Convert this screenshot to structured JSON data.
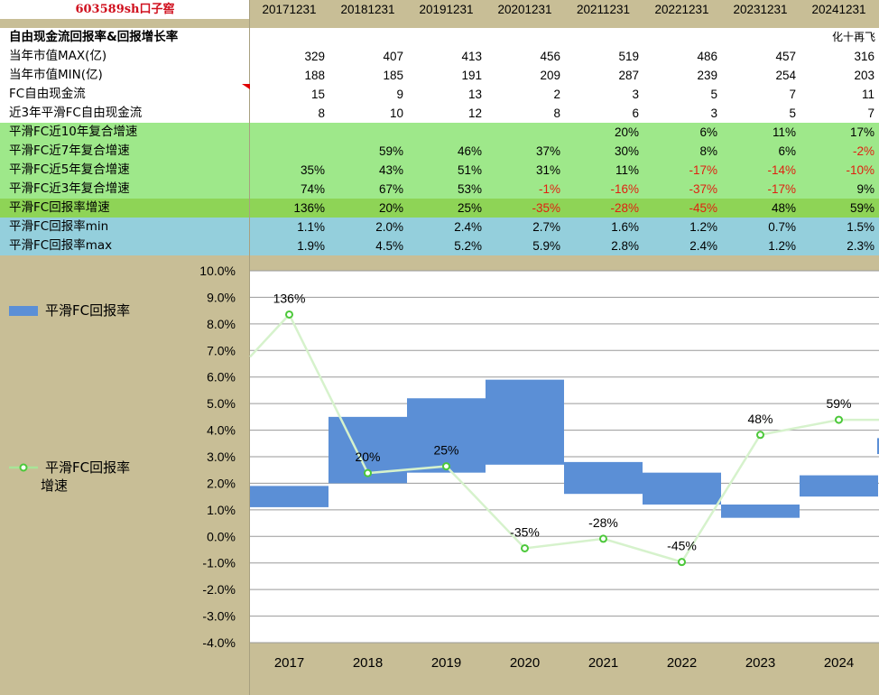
{
  "sheet": {
    "title": "603589sh口子窖",
    "section_title": "自由现金流回报率&回报增长率",
    "note": "化十再飞",
    "dates": [
      "20171231",
      "20181231",
      "20191231",
      "20201231",
      "20211231",
      "20221231",
      "20231231",
      "20241231"
    ],
    "rows": [
      {
        "label": "当年市值MAX(亿)",
        "values": [
          "329",
          "407",
          "413",
          "456",
          "519",
          "486",
          "457",
          "316"
        ],
        "bg": "white"
      },
      {
        "label": "当年市值MIN(亿)",
        "values": [
          "188",
          "185",
          "191",
          "209",
          "287",
          "239",
          "254",
          "203"
        ],
        "bg": "white"
      },
      {
        "label": "FC自由现金流",
        "values": [
          "15",
          "9",
          "13",
          "2",
          "3",
          "5",
          "7",
          "11"
        ],
        "bg": "white"
      },
      {
        "label": "近3年平滑FC自由现金流",
        "values": [
          "8",
          "10",
          "12",
          "8",
          "6",
          "3",
          "5",
          "7"
        ],
        "bg": "white"
      },
      {
        "label": "平滑FC近10年复合增速",
        "values": [
          "",
          "",
          "",
          "",
          "20%",
          "6%",
          "11%",
          "17%"
        ],
        "bg": "green"
      },
      {
        "label": "平滑FC近7年复合增速",
        "values": [
          "",
          "59%",
          "46%",
          "37%",
          "30%",
          "8%",
          "6%",
          "-2%"
        ],
        "bg": "green"
      },
      {
        "label": "平滑FC近5年复合增速",
        "values": [
          "35%",
          "43%",
          "51%",
          "31%",
          "11%",
          "-17%",
          "-14%",
          "-10%"
        ],
        "bg": "green"
      },
      {
        "label": "平滑FC近3年复合增速",
        "values": [
          "74%",
          "67%",
          "53%",
          "-1%",
          "-16%",
          "-37%",
          "-17%",
          "9%"
        ],
        "bg": "green"
      },
      {
        "label": "平滑FC回报率增速",
        "values": [
          "136%",
          "20%",
          "25%",
          "-35%",
          "-28%",
          "-45%",
          "48%",
          "59%"
        ],
        "bg": "dgreen"
      },
      {
        "label": "平滑FC回报率min",
        "values": [
          "1.1%",
          "2.0%",
          "2.4%",
          "2.7%",
          "1.6%",
          "1.2%",
          "0.7%",
          "1.5%"
        ],
        "bg": "blue"
      },
      {
        "label": "平滑FC回报率max",
        "values": [
          "1.9%",
          "4.5%",
          "5.2%",
          "5.9%",
          "2.8%",
          "2.4%",
          "1.2%",
          "2.3%"
        ],
        "bg": "blue"
      }
    ]
  },
  "chart_data": {
    "type": "bar",
    "categories": [
      "2017",
      "2018",
      "2019",
      "2020",
      "2021",
      "2022",
      "2023",
      "2024"
    ],
    "series": [
      {
        "name": "平滑FC回报率",
        "kind": "floating-bar",
        "low": [
          1.1,
          2.0,
          2.4,
          2.7,
          1.6,
          1.2,
          0.7,
          1.5
        ],
        "high": [
          1.9,
          4.5,
          5.2,
          5.9,
          2.8,
          2.4,
          1.2,
          2.3
        ],
        "color": "#5b8fd6"
      },
      {
        "name": "平滑FC回报率增速",
        "kind": "line",
        "values": [
          136,
          20,
          25,
          -35,
          -28,
          -45,
          48,
          59
        ],
        "labels": [
          "136%",
          "20%",
          "25%",
          "-35%",
          "-28%",
          "-45%",
          "48%",
          "59%"
        ],
        "color": "#8fe07a"
      }
    ],
    "y_ticks": [
      "10.0%",
      "9.0%",
      "8.0%",
      "7.0%",
      "6.0%",
      "5.0%",
      "4.0%",
      "3.0%",
      "2.0%",
      "1.0%",
      "0.0%",
      "-1.0%",
      "-2.0%",
      "-3.0%",
      "-4.0%"
    ],
    "ylim": [
      -4,
      10
    ],
    "grid": true,
    "legend_position": "left"
  }
}
